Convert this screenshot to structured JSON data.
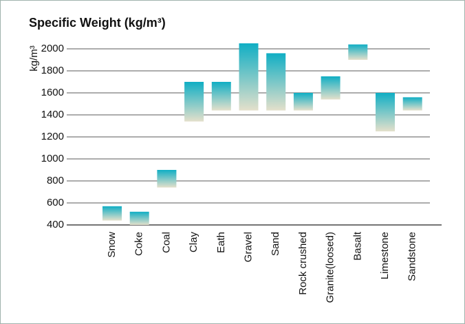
{
  "chart_data": {
    "type": "range-bar",
    "title": "Specific Weight (kg/m³)",
    "y_label": "kg/m³",
    "categories": [
      "Snow",
      "Coke",
      "Coal",
      "Clay",
      "Eath",
      "Gravel",
      "Sand",
      "Rock crushed",
      "Granite(loosed)",
      "Basalt",
      "Limestone",
      "Sandstone"
    ],
    "values": [
      [
        440,
        570
      ],
      [
        400,
        520
      ],
      [
        740,
        900
      ],
      [
        1340,
        1700
      ],
      [
        1440,
        1700
      ],
      [
        1440,
        2050
      ],
      [
        1440,
        1960
      ],
      [
        1440,
        1600
      ],
      [
        1540,
        1750
      ],
      [
        1900,
        2040
      ],
      [
        1250,
        1600
      ],
      [
        1440,
        1560
      ]
    ],
    "colors": [
      "#10aec4",
      "#e4e0cb"
    ],
    "ylim": [
      400,
      2100
    ],
    "yticks": [
      400,
      600,
      800,
      1000,
      1200,
      1400,
      1600,
      1800,
      2000
    ],
    "grid": true
  }
}
